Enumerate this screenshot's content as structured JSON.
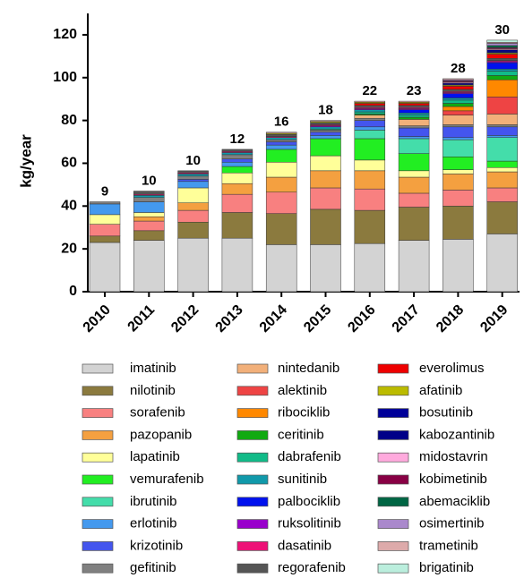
{
  "chart_data": {
    "type": "stacked-bar",
    "y_label": "kg/year",
    "categories": [
      "2010",
      "2011",
      "2012",
      "2013",
      "2014",
      "2015",
      "2016",
      "2017",
      "2018",
      "2019"
    ],
    "annotations": [
      9,
      10,
      10,
      12,
      16,
      18,
      22,
      23,
      28,
      30
    ],
    "ylim": [
      0,
      130
    ],
    "yticks": [
      0,
      20,
      40,
      60,
      80,
      100,
      120
    ],
    "series": [
      {
        "name": "imatinib",
        "color": "#d3d3d3",
        "values": [
          23,
          24,
          25,
          25,
          22,
          22,
          22.5,
          24,
          24.5,
          27
        ]
      },
      {
        "name": "nilotinib",
        "color": "#8b7a3e",
        "values": [
          3,
          4.5,
          7.5,
          12,
          14.5,
          16.5,
          15.5,
          15.5,
          15.5,
          15
        ]
      },
      {
        "name": "sorafenib",
        "color": "#f88080",
        "values": [
          5.5,
          4.5,
          5.5,
          8.5,
          10,
          10,
          10,
          6.5,
          7.5,
          6.5
        ]
      },
      {
        "name": "pazopanib",
        "color": "#f4a040",
        "values": [
          0,
          2,
          3.5,
          5,
          7,
          8,
          8.5,
          7.5,
          7.5,
          7.5
        ]
      },
      {
        "name": "lapatinib",
        "color": "#ffff99",
        "values": [
          4.5,
          2,
          7,
          5,
          7,
          7,
          5,
          3,
          2,
          2
        ]
      },
      {
        "name": "vemurafenib",
        "color": "#22ee22",
        "values": [
          0,
          0,
          0,
          3,
          6,
          8,
          10,
          8,
          6,
          3
        ]
      },
      {
        "name": "ibrutinib",
        "color": "#44ddaa",
        "values": [
          0,
          0,
          0,
          0,
          0,
          0,
          4,
          7,
          8,
          11
        ]
      },
      {
        "name": "erlotinib",
        "color": "#4499ee",
        "values": [
          5,
          5,
          3,
          2,
          2,
          1.5,
          1.5,
          1,
          1,
          1
        ]
      },
      {
        "name": "krizotinib",
        "color": "#4455ee",
        "values": [
          0,
          0,
          1,
          1.5,
          1.5,
          1.5,
          3,
          4,
          5,
          4
        ]
      },
      {
        "name": "gefitinib",
        "color": "#808080",
        "values": [
          1,
          2,
          1.5,
          2,
          1,
          1,
          1,
          1,
          1,
          1
        ]
      },
      {
        "name": "nintedanib",
        "color": "#f2b07a",
        "values": [
          0,
          0,
          0,
          0,
          0,
          0,
          1.5,
          3,
          4.5,
          5
        ]
      },
      {
        "name": "alektinib",
        "color": "#ee4444",
        "values": [
          0,
          0,
          0,
          0,
          0,
          0,
          0,
          0,
          2,
          8
        ]
      },
      {
        "name": "ribociklib",
        "color": "#ff8800",
        "values": [
          0,
          0,
          0,
          0,
          0,
          0,
          0,
          0,
          2,
          8
        ]
      },
      {
        "name": "ceritinib",
        "color": "#11aa11",
        "values": [
          0,
          0,
          0,
          0,
          0,
          0,
          0.5,
          1,
          1.5,
          2
        ]
      },
      {
        "name": "dabrafenib",
        "color": "#11bb88",
        "values": [
          0,
          0,
          0,
          0,
          0,
          0.5,
          1,
          1,
          1.5,
          2
        ]
      },
      {
        "name": "sunitinib",
        "color": "#1199aa",
        "values": [
          0,
          1,
          1,
          1,
          1,
          1,
          1,
          1,
          1,
          1
        ]
      },
      {
        "name": "palbociklib",
        "color": "#0011ee",
        "values": [
          0,
          0,
          0,
          0,
          0,
          0,
          0,
          1.5,
          2,
          3
        ]
      },
      {
        "name": "ruksolitinib",
        "color": "#9900cc",
        "values": [
          0,
          0,
          0,
          0,
          0,
          0.5,
          0.5,
          0.5,
          0.5,
          0.5
        ]
      },
      {
        "name": "dasatinib",
        "color": "#ee1177",
        "values": [
          0,
          0.5,
          0.5,
          0.5,
          0.5,
          0.5,
          0.5,
          0.5,
          0.5,
          0.5
        ]
      },
      {
        "name": "regorafenib",
        "color": "#555555",
        "values": [
          0,
          1.5,
          1,
          1,
          1,
          1,
          1,
          1,
          1,
          1
        ]
      },
      {
        "name": "everolimus",
        "color": "#ee0000",
        "values": [
          0,
          0,
          0,
          0,
          0,
          0,
          1,
          1,
          1.5,
          2
        ]
      },
      {
        "name": "afatinib",
        "color": "#bbbb00",
        "values": [
          0,
          0,
          0,
          0,
          0.5,
          0.5,
          0.5,
          0.5,
          0.5,
          0.5
        ]
      },
      {
        "name": "bosutinib",
        "color": "#000099",
        "values": [
          0,
          0,
          0,
          0,
          0,
          0,
          0,
          0,
          0.5,
          0.5
        ]
      },
      {
        "name": "kabozantinib",
        "color": "#000088",
        "values": [
          0,
          0,
          0,
          0,
          0,
          0,
          0,
          0,
          0.5,
          1
        ]
      },
      {
        "name": "midostavrin",
        "color": "#ffaadd",
        "values": [
          0,
          0,
          0,
          0,
          0,
          0,
          0,
          0,
          0.5,
          0.5
        ]
      },
      {
        "name": "kobimetinib",
        "color": "#880044",
        "values": [
          0,
          0,
          0,
          0,
          0,
          0,
          0,
          0,
          0.5,
          0.5
        ]
      },
      {
        "name": "abemaciklib",
        "color": "#006644",
        "values": [
          0,
          0,
          0,
          0,
          0,
          0,
          0,
          0,
          0,
          1
        ]
      },
      {
        "name": "osimertinib",
        "color": "#aa88cc",
        "values": [
          0,
          0,
          0,
          0,
          0,
          0,
          0,
          0,
          0.5,
          1
        ]
      },
      {
        "name": "trametinib",
        "color": "#ddaaaa",
        "values": [
          0,
          0,
          0,
          0,
          0.5,
          0.5,
          0.5,
          0.5,
          0.5,
          0.5
        ]
      },
      {
        "name": "brigatinib",
        "color": "#bbeedd",
        "values": [
          0,
          0,
          0,
          0,
          0,
          0,
          0,
          0,
          0,
          1
        ]
      }
    ]
  }
}
